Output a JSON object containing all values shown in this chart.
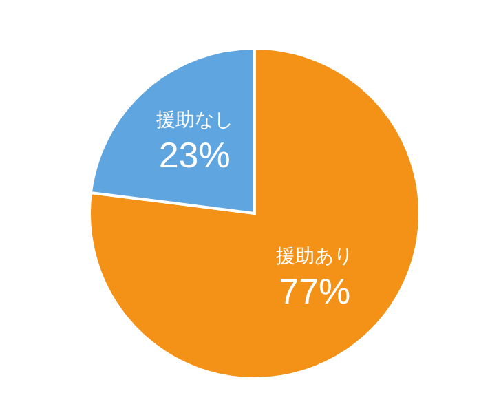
{
  "chart_data": {
    "type": "pie",
    "categories": [
      "援助あり",
      "援助なし"
    ],
    "values": [
      77,
      23
    ],
    "colors": [
      "#f39216",
      "#5fa5e0"
    ],
    "value_labels": [
      "77%",
      "23%"
    ],
    "legend": false
  }
}
